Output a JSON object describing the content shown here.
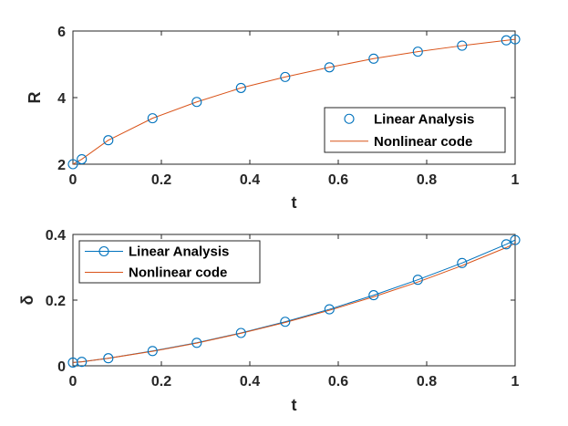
{
  "chart_data": [
    {
      "type": "scatter",
      "xlabel": "t",
      "ylabel": "R",
      "xlim": [
        0,
        1
      ],
      "ylim": [
        2,
        6
      ],
      "xticks": [
        "0",
        "0.2",
        "0.4",
        "0.6",
        "0.8",
        "1"
      ],
      "yticks": [
        "2",
        "4",
        "6"
      ],
      "xtick_values": [
        0,
        0.2,
        0.4,
        0.6,
        0.8,
        1
      ],
      "ytick_values": [
        2,
        4,
        6
      ],
      "grid": false,
      "legend_position": "lower-right",
      "series": [
        {
          "name": "Linear Analysis",
          "style": "markers",
          "color": "#0072BD",
          "x": [
            0,
            0.02,
            0.08,
            0.18,
            0.28,
            0.38,
            0.48,
            0.58,
            0.68,
            0.78,
            0.88,
            0.98,
            1.0
          ],
          "y": [
            2.0,
            2.15,
            2.72,
            3.38,
            3.87,
            4.29,
            4.62,
            4.91,
            5.17,
            5.38,
            5.56,
            5.72,
            5.75
          ]
        },
        {
          "name": "Nonlinear code",
          "style": "line",
          "color": "#D95319",
          "x": [
            0,
            0.02,
            0.08,
            0.18,
            0.28,
            0.38,
            0.48,
            0.58,
            0.68,
            0.78,
            0.88,
            0.98,
            1.0
          ],
          "y": [
            2.0,
            2.15,
            2.72,
            3.38,
            3.87,
            4.29,
            4.62,
            4.91,
            5.17,
            5.38,
            5.56,
            5.72,
            5.75
          ]
        }
      ]
    },
    {
      "type": "line",
      "xlabel": "t",
      "ylabel": "δ",
      "xlim": [
        0,
        1
      ],
      "ylim": [
        0,
        0.4
      ],
      "xticks": [
        "0",
        "0.2",
        "0.4",
        "0.6",
        "0.8",
        "1"
      ],
      "yticks": [
        "0",
        "0.2",
        "0.4"
      ],
      "xtick_values": [
        0,
        0.2,
        0.4,
        0.6,
        0.8,
        1
      ],
      "ytick_values": [
        0,
        0.2,
        0.4
      ],
      "grid": false,
      "legend_position": "top-left",
      "series": [
        {
          "name": "Linear Analysis",
          "style": "line-markers",
          "color": "#0072BD",
          "x": [
            0,
            0.02,
            0.08,
            0.18,
            0.28,
            0.38,
            0.48,
            0.58,
            0.68,
            0.78,
            0.88,
            0.98,
            1.0
          ],
          "y": [
            0.01,
            0.012,
            0.023,
            0.045,
            0.07,
            0.1,
            0.134,
            0.172,
            0.215,
            0.262,
            0.313,
            0.37,
            0.383
          ]
        },
        {
          "name": "Nonlinear code",
          "style": "line",
          "color": "#D95319",
          "x": [
            0,
            0.02,
            0.08,
            0.18,
            0.28,
            0.38,
            0.48,
            0.58,
            0.68,
            0.78,
            0.88,
            0.98,
            1.0
          ],
          "y": [
            0.01,
            0.012,
            0.023,
            0.044,
            0.069,
            0.099,
            0.132,
            0.169,
            0.21,
            0.255,
            0.305,
            0.36,
            0.373
          ]
        }
      ]
    }
  ]
}
